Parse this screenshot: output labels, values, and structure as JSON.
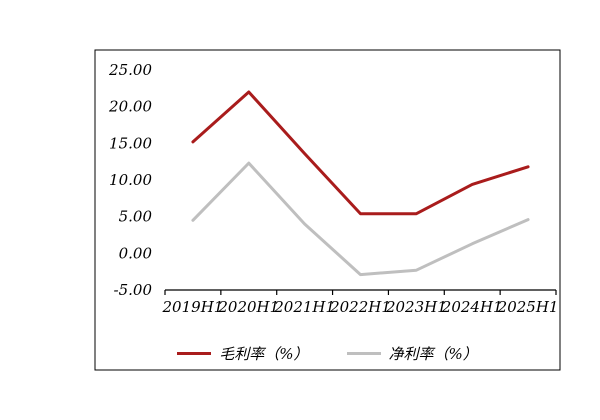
{
  "chart_data": {
    "type": "line",
    "title": "",
    "xlabel": "",
    "ylabel": "",
    "categories": [
      "2019H1",
      "2020H1",
      "2021H1",
      "2022H1",
      "2023H1",
      "2024H1",
      "2025H1"
    ],
    "series": [
      {
        "name": "毛利率（%）",
        "color": "#a91c1c",
        "values": [
          15.2,
          22.0,
          13.6,
          5.4,
          5.4,
          9.4,
          11.8
        ]
      },
      {
        "name": "净利率（%）",
        "color": "#bfbfbf",
        "values": [
          4.5,
          12.3,
          4.0,
          -2.9,
          -2.3,
          1.3,
          4.6
        ]
      }
    ],
    "ylim": [
      -5,
      25
    ],
    "y_ticks": [
      25,
      20,
      15,
      10,
      5,
      0,
      -5
    ],
    "y_tick_format_decimals": 2,
    "grid": false,
    "legend_position": "bottom"
  },
  "legend": {
    "items": [
      {
        "label": "毛利率（%）",
        "color": "#a91c1c"
      },
      {
        "label": "净利率（%）",
        "color": "#bfbfbf"
      }
    ]
  }
}
